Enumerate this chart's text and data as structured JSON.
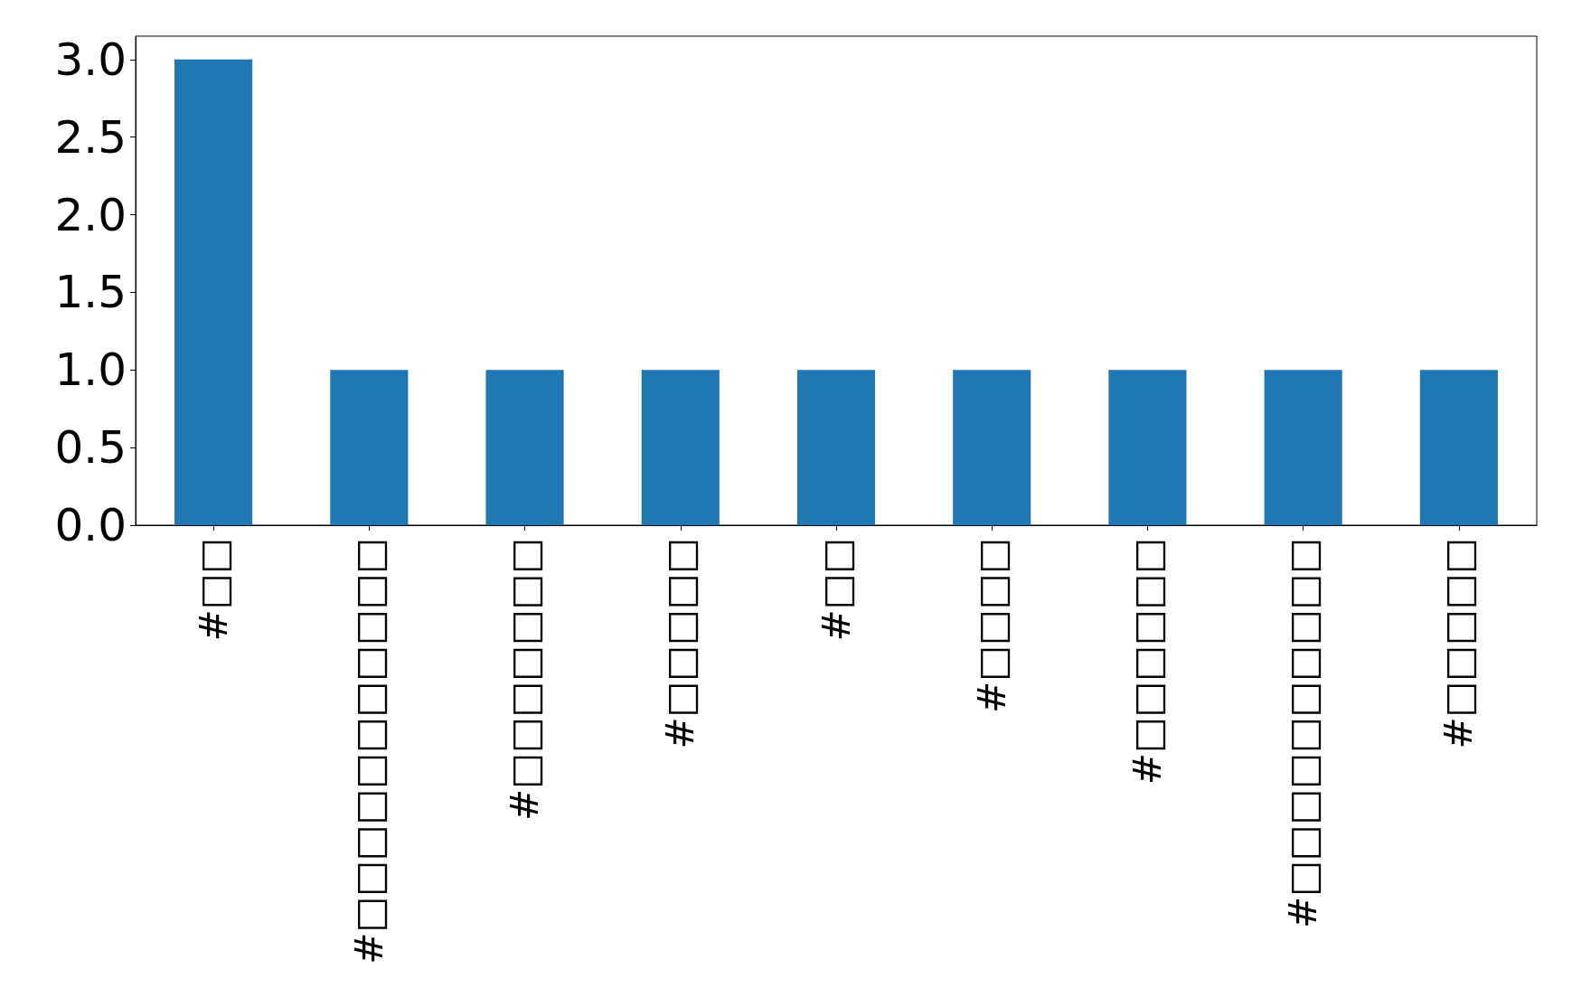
{
  "chart_data": {
    "type": "bar",
    "categories": [
      "#□□",
      "#□□□□□□□□□□□",
      "#□□□□□□□",
      "#□□□□□",
      "#□□",
      "#□□□□",
      "#□□□□□□",
      "#□□□□□□□□□□",
      "#□□□□□"
    ],
    "values": [
      3,
      1,
      1,
      1,
      1,
      1,
      1,
      1,
      1
    ],
    "color": "#1f77b4",
    "ylim": [
      0,
      3.15
    ],
    "yticks": [
      {
        "value": 0,
        "label": "0.0"
      },
      {
        "value": 0.5,
        "label": "0.5"
      },
      {
        "value": 1,
        "label": "1.0"
      },
      {
        "value": 1.5,
        "label": "1.5"
      },
      {
        "value": 2,
        "label": "2.0"
      },
      {
        "value": 2.5,
        "label": "2.5"
      },
      {
        "value": 3,
        "label": "3.0"
      }
    ],
    "grid": false
  }
}
